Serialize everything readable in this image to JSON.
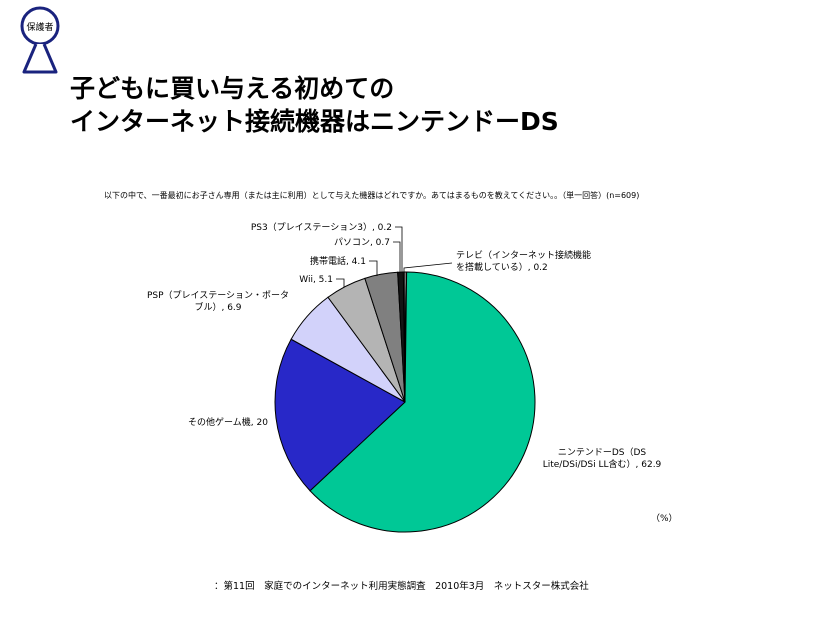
{
  "badge": {
    "text": "保護者"
  },
  "header": {
    "title_line1": "子どもに買い与える初めての",
    "title_line2": "インターネット接続機器はニンテンドーDS"
  },
  "question": "以下の中で、一番最初にお子さん専用（または主に利用）として与えた機器はどれですか。あてはまるものを教えてください。。（単一回答）(n=609)",
  "unit": "（%）",
  "source": "：第11回　家庭でのインターネット利用実態調査　2010年3月　ネットスター株式会社",
  "chart_data": {
    "type": "pie",
    "title": "",
    "start": "12 o'clock, clockwise",
    "slices": [
      {
        "label_lines": [
          "テレビ（インターネット接続機能",
          "を搭載している）, 0.2"
        ],
        "value": 0.2,
        "color": "#e8e8e8"
      },
      {
        "label_lines": [
          "ニンテンドーDS（DS",
          "Lite/DSi/DSi LL含む）, 62.9"
        ],
        "value": 62.9,
        "color": "#00c896"
      },
      {
        "label_lines": [
          "その他ゲーム機, 20"
        ],
        "value": 20,
        "color": "#2828c8"
      },
      {
        "label_lines": [
          "PSP（プレイステーション・ポータ",
          "ブル）, 6.9"
        ],
        "value": 6.9,
        "color": "#d2d2fa"
      },
      {
        "label_lines": [
          "Wii, 5.1"
        ],
        "value": 5.1,
        "color": "#b4b4b4"
      },
      {
        "label_lines": [
          "携帯電話, 4.1"
        ],
        "value": 4.1,
        "color": "#808080"
      },
      {
        "label_lines": [
          "パソコン, 0.7"
        ],
        "value": 0.7,
        "color": "#141414"
      },
      {
        "label_lines": [
          "PS3（プレイステーション3）, 0.2"
        ],
        "value": 0.2,
        "color": "#5a5a5a"
      }
    ]
  }
}
